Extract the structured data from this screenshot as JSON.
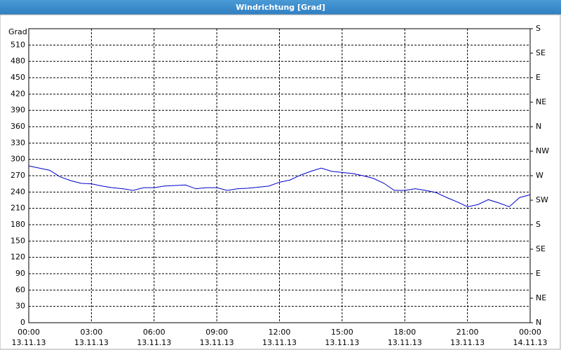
{
  "chart_data": {
    "type": "line",
    "title": "Windrichtung [Grad]",
    "y_label": "Grad",
    "x": [
      0,
      0.5,
      1,
      1.5,
      2,
      2.5,
      3,
      3.5,
      4,
      4.5,
      5,
      5.5,
      6,
      6.5,
      7,
      7.5,
      8,
      8.5,
      9,
      9.5,
      10,
      10.5,
      11,
      11.5,
      12,
      12.5,
      13,
      13.5,
      14,
      14.5,
      15,
      15.5,
      16,
      16.5,
      17,
      17.5,
      18,
      18.5,
      19,
      19.5,
      20,
      20.5,
      21,
      21.5,
      22,
      22.5,
      23,
      23.5,
      24
    ],
    "series": [
      {
        "name": "Windrichtung",
        "color": "#0000cc",
        "values": [
          288,
          284,
          280,
          268,
          261,
          256,
          255,
          251,
          248,
          246,
          243,
          248,
          248,
          251,
          252,
          253,
          246,
          248,
          248,
          243,
          246,
          247,
          249,
          251,
          258,
          262,
          271,
          278,
          284,
          278,
          276,
          274,
          270,
          265,
          256,
          243,
          243,
          246,
          243,
          239,
          230,
          222,
          213,
          217,
          226,
          220,
          213,
          230,
          235
        ]
      }
    ],
    "xlim": [
      0,
      24
    ],
    "xticks": [
      {
        "value": 0,
        "label": "00:00",
        "date": "13.11.13"
      },
      {
        "value": 3,
        "label": "03:00",
        "date": "13.11.13"
      },
      {
        "value": 6,
        "label": "06:00",
        "date": "13.11.13"
      },
      {
        "value": 9,
        "label": "09:00",
        "date": "13.11.13"
      },
      {
        "value": 12,
        "label": "12:00",
        "date": "13.11.13"
      },
      {
        "value": 15,
        "label": "15:00",
        "date": "13.11.13"
      },
      {
        "value": 18,
        "label": "18:00",
        "date": "13.11.13"
      },
      {
        "value": 21,
        "label": "21:00",
        "date": "13.11.13"
      },
      {
        "value": 24,
        "label": "00:00",
        "date": "14.11.13"
      }
    ],
    "ylim": [
      0,
      540
    ],
    "yticks": [
      0,
      30,
      60,
      90,
      120,
      150,
      180,
      210,
      240,
      270,
      300,
      330,
      360,
      390,
      420,
      450,
      480,
      510
    ],
    "y2lim": [
      0,
      540
    ],
    "y2ticks": [
      {
        "value": 0,
        "label": "N"
      },
      {
        "value": 45,
        "label": "NE"
      },
      {
        "value": 90,
        "label": "E"
      },
      {
        "value": 135,
        "label": "SE"
      },
      {
        "value": 180,
        "label": "S"
      },
      {
        "value": 225,
        "label": "SW"
      },
      {
        "value": 270,
        "label": "W"
      },
      {
        "value": 315,
        "label": "NW"
      },
      {
        "value": 360,
        "label": "N"
      },
      {
        "value": 405,
        "label": "NE"
      },
      {
        "value": 450,
        "label": "E"
      },
      {
        "value": 495,
        "label": "SE"
      },
      {
        "value": 540,
        "label": "S"
      }
    ],
    "grid": true
  }
}
